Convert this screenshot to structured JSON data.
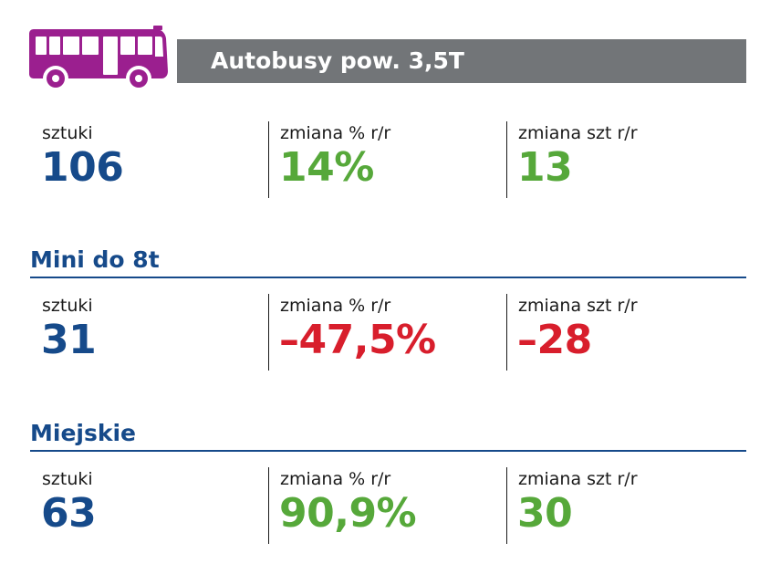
{
  "colors": {
    "bus_icon": "#9b1f8f",
    "title_bar": "#727578",
    "section_heading": "#164a8a",
    "neutral_value": "#164a8a",
    "positive_value": "#56a83a",
    "negative_value": "#d81e2c"
  },
  "header": {
    "icon": "bus-icon",
    "title": "Autobusy pow. 3,5T"
  },
  "sections": [
    {
      "heading": "",
      "stats": [
        {
          "label": "sztuki",
          "value": "106",
          "tone": "neutral"
        },
        {
          "label": "zmiana % r/r",
          "value": "14%",
          "tone": "positive"
        },
        {
          "label": "zmiana szt r/r",
          "value": "13",
          "tone": "positive"
        }
      ]
    },
    {
      "heading": "Mini do 8t",
      "stats": [
        {
          "label": "sztuki",
          "value": "31",
          "tone": "neutral"
        },
        {
          "label": "zmiana % r/r",
          "value": "–47,5%",
          "tone": "negative"
        },
        {
          "label": "zmiana szt r/r",
          "value": "–28",
          "tone": "negative"
        }
      ]
    },
    {
      "heading": "Miejskie",
      "stats": [
        {
          "label": "sztuki",
          "value": "63",
          "tone": "neutral"
        },
        {
          "label": "zmiana % r/r",
          "value": "90,9%",
          "tone": "positive"
        },
        {
          "label": "zmiana szt r/r",
          "value": "30",
          "tone": "positive"
        }
      ]
    }
  ]
}
